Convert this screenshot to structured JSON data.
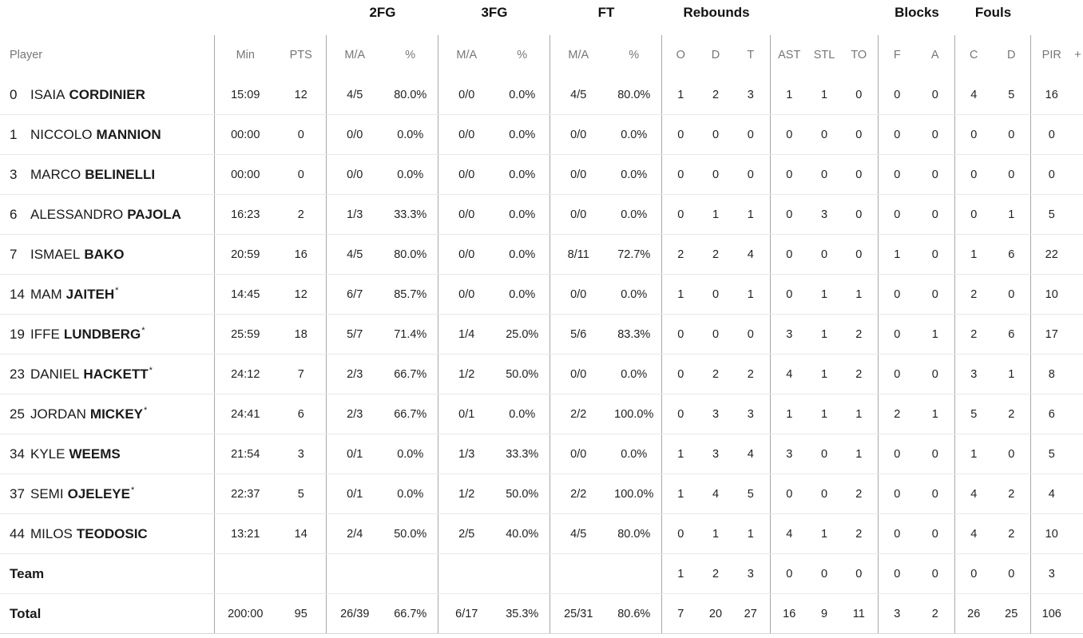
{
  "groups": {
    "two_fg": "2FG",
    "three_fg": "3FG",
    "ft": "FT",
    "rebounds": "Rebounds",
    "blocks": "Blocks",
    "fouls": "Fouls"
  },
  "columns": {
    "player": "Player",
    "min": "Min",
    "pts": "PTS",
    "two_ma": "M/A",
    "two_pct": "%",
    "three_ma": "M/A",
    "three_pct": "%",
    "ft_ma": "M/A",
    "ft_pct": "%",
    "reb_o": "O",
    "reb_d": "D",
    "reb_t": "T",
    "ast": "AST",
    "stl": "STL",
    "to": "TO",
    "blk_f": "F",
    "blk_a": "A",
    "foul_c": "C",
    "foul_d": "D",
    "pir": "PIR",
    "plus": "+"
  },
  "players": [
    {
      "num": "0",
      "first": "ISAIA",
      "last": "CORDINIER",
      "star": "",
      "min": "15:09",
      "pts": "12",
      "two_ma": "4/5",
      "two_pct": "80.0%",
      "three_ma": "0/0",
      "three_pct": "0.0%",
      "ft_ma": "4/5",
      "ft_pct": "80.0%",
      "o": "1",
      "d": "2",
      "t": "3",
      "ast": "1",
      "stl": "1",
      "to": "0",
      "bf": "0",
      "ba": "0",
      "fc": "4",
      "fd": "5",
      "pir": "16"
    },
    {
      "num": "1",
      "first": "NICCOLO",
      "last": "MANNION",
      "star": "",
      "min": "00:00",
      "pts": "0",
      "two_ma": "0/0",
      "two_pct": "0.0%",
      "three_ma": "0/0",
      "three_pct": "0.0%",
      "ft_ma": "0/0",
      "ft_pct": "0.0%",
      "o": "0",
      "d": "0",
      "t": "0",
      "ast": "0",
      "stl": "0",
      "to": "0",
      "bf": "0",
      "ba": "0",
      "fc": "0",
      "fd": "0",
      "pir": "0"
    },
    {
      "num": "3",
      "first": "MARCO",
      "last": "BELINELLI",
      "star": "",
      "min": "00:00",
      "pts": "0",
      "two_ma": "0/0",
      "two_pct": "0.0%",
      "three_ma": "0/0",
      "three_pct": "0.0%",
      "ft_ma": "0/0",
      "ft_pct": "0.0%",
      "o": "0",
      "d": "0",
      "t": "0",
      "ast": "0",
      "stl": "0",
      "to": "0",
      "bf": "0",
      "ba": "0",
      "fc": "0",
      "fd": "0",
      "pir": "0"
    },
    {
      "num": "6",
      "first": "ALESSANDRO",
      "last": "PAJOLA",
      "star": "",
      "min": "16:23",
      "pts": "2",
      "two_ma": "1/3",
      "two_pct": "33.3%",
      "three_ma": "0/0",
      "three_pct": "0.0%",
      "ft_ma": "0/0",
      "ft_pct": "0.0%",
      "o": "0",
      "d": "1",
      "t": "1",
      "ast": "0",
      "stl": "3",
      "to": "0",
      "bf": "0",
      "ba": "0",
      "fc": "0",
      "fd": "1",
      "pir": "5"
    },
    {
      "num": "7",
      "first": "ISMAEL",
      "last": "BAKO",
      "star": "",
      "min": "20:59",
      "pts": "16",
      "two_ma": "4/5",
      "two_pct": "80.0%",
      "three_ma": "0/0",
      "three_pct": "0.0%",
      "ft_ma": "8/11",
      "ft_pct": "72.7%",
      "o": "2",
      "d": "2",
      "t": "4",
      "ast": "0",
      "stl": "0",
      "to": "0",
      "bf": "1",
      "ba": "0",
      "fc": "1",
      "fd": "6",
      "pir": "22"
    },
    {
      "num": "14",
      "first": "MAM",
      "last": "JAITEH",
      "star": "*",
      "min": "14:45",
      "pts": "12",
      "two_ma": "6/7",
      "two_pct": "85.7%",
      "three_ma": "0/0",
      "three_pct": "0.0%",
      "ft_ma": "0/0",
      "ft_pct": "0.0%",
      "o": "1",
      "d": "0",
      "t": "1",
      "ast": "0",
      "stl": "1",
      "to": "1",
      "bf": "0",
      "ba": "0",
      "fc": "2",
      "fd": "0",
      "pir": "10"
    },
    {
      "num": "19",
      "first": "IFFE",
      "last": "LUNDBERG",
      "star": "*",
      "min": "25:59",
      "pts": "18",
      "two_ma": "5/7",
      "two_pct": "71.4%",
      "three_ma": "1/4",
      "three_pct": "25.0%",
      "ft_ma": "5/6",
      "ft_pct": "83.3%",
      "o": "0",
      "d": "0",
      "t": "0",
      "ast": "3",
      "stl": "1",
      "to": "2",
      "bf": "0",
      "ba": "1",
      "fc": "2",
      "fd": "6",
      "pir": "17"
    },
    {
      "num": "23",
      "first": "DANIEL",
      "last": "HACKETT",
      "star": "*",
      "min": "24:12",
      "pts": "7",
      "two_ma": "2/3",
      "two_pct": "66.7%",
      "three_ma": "1/2",
      "three_pct": "50.0%",
      "ft_ma": "0/0",
      "ft_pct": "0.0%",
      "o": "0",
      "d": "2",
      "t": "2",
      "ast": "4",
      "stl": "1",
      "to": "2",
      "bf": "0",
      "ba": "0",
      "fc": "3",
      "fd": "1",
      "pir": "8"
    },
    {
      "num": "25",
      "first": "JORDAN",
      "last": "MICKEY",
      "star": "*",
      "min": "24:41",
      "pts": "6",
      "two_ma": "2/3",
      "two_pct": "66.7%",
      "three_ma": "0/1",
      "three_pct": "0.0%",
      "ft_ma": "2/2",
      "ft_pct": "100.0%",
      "o": "0",
      "d": "3",
      "t": "3",
      "ast": "1",
      "stl": "1",
      "to": "1",
      "bf": "2",
      "ba": "1",
      "fc": "5",
      "fd": "2",
      "pir": "6"
    },
    {
      "num": "34",
      "first": "KYLE",
      "last": "WEEMS",
      "star": "",
      "min": "21:54",
      "pts": "3",
      "two_ma": "0/1",
      "two_pct": "0.0%",
      "three_ma": "1/3",
      "three_pct": "33.3%",
      "ft_ma": "0/0",
      "ft_pct": "0.0%",
      "o": "1",
      "d": "3",
      "t": "4",
      "ast": "3",
      "stl": "0",
      "to": "1",
      "bf": "0",
      "ba": "0",
      "fc": "1",
      "fd": "0",
      "pir": "5"
    },
    {
      "num": "37",
      "first": "SEMI",
      "last": "OJELEYE",
      "star": "*",
      "min": "22:37",
      "pts": "5",
      "two_ma": "0/1",
      "two_pct": "0.0%",
      "three_ma": "1/2",
      "three_pct": "50.0%",
      "ft_ma": "2/2",
      "ft_pct": "100.0%",
      "o": "1",
      "d": "4",
      "t": "5",
      "ast": "0",
      "stl": "0",
      "to": "2",
      "bf": "0",
      "ba": "0",
      "fc": "4",
      "fd": "2",
      "pir": "4"
    },
    {
      "num": "44",
      "first": "MILOS",
      "last": "TEODOSIC",
      "star": "",
      "min": "13:21",
      "pts": "14",
      "two_ma": "2/4",
      "two_pct": "50.0%",
      "three_ma": "2/5",
      "three_pct": "40.0%",
      "ft_ma": "4/5",
      "ft_pct": "80.0%",
      "o": "0",
      "d": "1",
      "t": "1",
      "ast": "4",
      "stl": "1",
      "to": "2",
      "bf": "0",
      "ba": "0",
      "fc": "4",
      "fd": "2",
      "pir": "10"
    }
  ],
  "team": {
    "label": "Team",
    "o": "1",
    "d": "2",
    "t": "3",
    "ast": "0",
    "stl": "0",
    "to": "0",
    "bf": "0",
    "ba": "0",
    "fc": "0",
    "fd": "0",
    "pir": "3"
  },
  "total": {
    "label": "Total",
    "min": "200:00",
    "pts": "95",
    "two_ma": "26/39",
    "two_pct": "66.7%",
    "three_ma": "6/17",
    "three_pct": "35.3%",
    "ft_ma": "25/31",
    "ft_pct": "80.6%",
    "o": "7",
    "d": "20",
    "t": "27",
    "ast": "16",
    "stl": "9",
    "to": "11",
    "bf": "3",
    "ba": "2",
    "fc": "26",
    "fd": "25",
    "pir": "106"
  }
}
